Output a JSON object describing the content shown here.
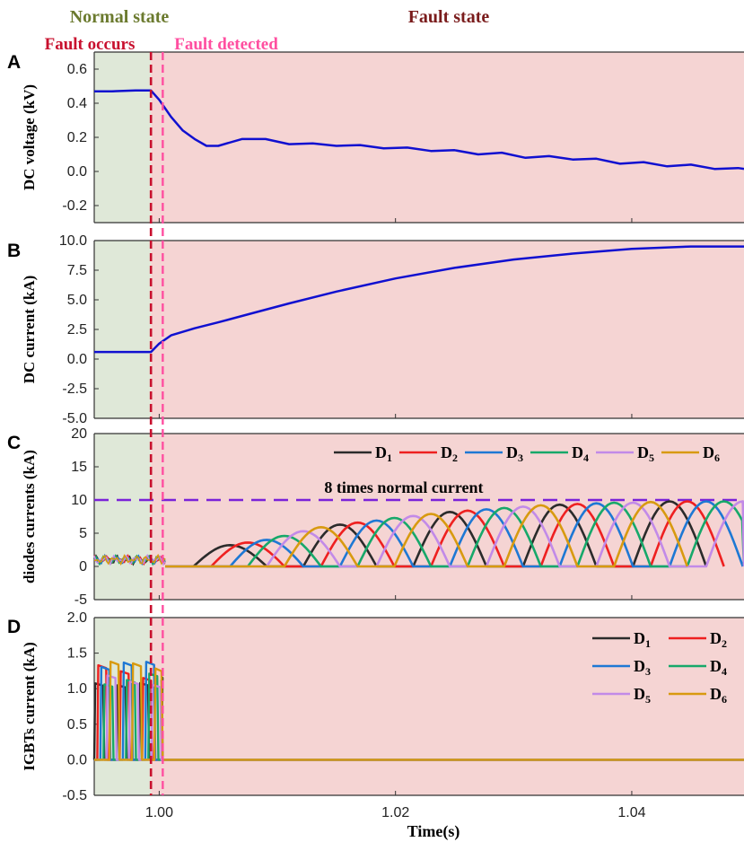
{
  "figure": {
    "normal_state_label": "Normal state",
    "fault_state_label": "Fault state",
    "fault_occurs_label": "Fault occurs",
    "fault_detected_label": "Fault detected",
    "colors": {
      "normal_bg": "#dfe8d8",
      "fault_bg": "#f5d4d3",
      "normal_label": "#6b7a2e",
      "fault_label": "#7a1c1c",
      "fault_occurs": "#c8102e",
      "fault_detected": "#ff4fa0",
      "trace": "#1010d0"
    },
    "xlabel": "Time(s)",
    "x_range": [
      0.9945,
      1.0495
    ],
    "fault_occurs_time": 0.9993,
    "fault_detected_time": 1.0003,
    "x_ticks": [
      1.0,
      1.02,
      1.04
    ],
    "x_tick_labels": [
      "1.00",
      "1.02",
      "1.04"
    ]
  },
  "chart_data": [
    {
      "panel": "A",
      "type": "line",
      "ylabel": "DC voltage (kV)",
      "ylim": [
        -0.3,
        0.7
      ],
      "yticks": [
        -0.2,
        0.0,
        0.2,
        0.4,
        0.6
      ],
      "ytick_labels": [
        "-0.2",
        "0.0",
        "0.2",
        "0.4",
        "0.6"
      ],
      "series": [
        {
          "color": "#1010d0",
          "x": [
            0.9945,
            0.996,
            0.998,
            0.9993,
            1.0,
            1.001,
            1.002,
            1.003,
            1.004,
            1.005,
            1.007,
            1.009,
            1.011,
            1.013,
            1.015,
            1.017,
            1.019,
            1.021,
            1.023,
            1.025,
            1.027,
            1.029,
            1.031,
            1.033,
            1.035,
            1.037,
            1.039,
            1.041,
            1.043,
            1.045,
            1.047,
            1.049,
            1.0495
          ],
          "y": [
            0.47,
            0.47,
            0.475,
            0.475,
            0.42,
            0.32,
            0.24,
            0.19,
            0.15,
            0.15,
            0.19,
            0.19,
            0.16,
            0.165,
            0.15,
            0.155,
            0.135,
            0.14,
            0.12,
            0.125,
            0.1,
            0.11,
            0.08,
            0.09,
            0.07,
            0.075,
            0.045,
            0.055,
            0.03,
            0.04,
            0.015,
            0.02,
            0.015
          ]
        }
      ]
    },
    {
      "panel": "B",
      "type": "line",
      "ylabel": "DC current (kA)",
      "ylim": [
        -5.0,
        10.0
      ],
      "yticks": [
        -5.0,
        -2.5,
        0.0,
        2.5,
        5.0,
        7.5,
        10.0
      ],
      "ytick_labels": [
        "-5.0",
        "-2.5",
        "0.0",
        "2.5",
        "5.0",
        "7.5",
        "10.0"
      ],
      "series": [
        {
          "color": "#1010d0",
          "x": [
            0.9945,
            0.996,
            0.998,
            0.9993,
            1.0,
            1.001,
            1.003,
            1.005,
            1.008,
            1.011,
            1.015,
            1.02,
            1.025,
            1.03,
            1.035,
            1.04,
            1.045,
            1.0495
          ],
          "y": [
            0.6,
            0.6,
            0.6,
            0.6,
            1.3,
            2.0,
            2.6,
            3.1,
            3.9,
            4.7,
            5.7,
            6.8,
            7.7,
            8.4,
            8.9,
            9.3,
            9.5,
            9.5
          ]
        }
      ]
    },
    {
      "panel": "C",
      "type": "line",
      "ylabel": "diodes currents (kA)",
      "ylim": [
        -5,
        20
      ],
      "yticks": [
        -5,
        0,
        5,
        10,
        15,
        20
      ],
      "ytick_labels": [
        "-5",
        "0",
        "5",
        "10",
        "15",
        "20"
      ],
      "reference_line": {
        "y": 10,
        "label": "8 times normal current",
        "color": "#7a22d8"
      },
      "series": [
        {
          "name": "D1",
          "color": "#2b2b2b",
          "peaks": [
            [
              1.006,
              3.2
            ],
            [
              1.0153,
              6.3
            ],
            [
              1.0246,
              8.2
            ],
            [
              1.0339,
              9.3
            ],
            [
              1.0432,
              9.8
            ]
          ]
        },
        {
          "name": "D2",
          "color": "#ee2020",
          "peaks": [
            [
              1.0075,
              3.6
            ],
            [
              1.0168,
              6.6
            ],
            [
              1.0261,
              8.4
            ],
            [
              1.0354,
              9.4
            ],
            [
              1.0447,
              9.8
            ]
          ]
        },
        {
          "name": "D3",
          "color": "#1e78d4",
          "peaks": [
            [
              1.0091,
              4.0
            ],
            [
              1.0184,
              6.9
            ],
            [
              1.0277,
              8.6
            ],
            [
              1.037,
              9.5
            ],
            [
              1.0463,
              9.8
            ]
          ]
        },
        {
          "name": "D4",
          "color": "#17a86a",
          "peaks": [
            [
              1.0106,
              4.6
            ],
            [
              1.0199,
              7.3
            ],
            [
              1.0292,
              8.8
            ],
            [
              1.0385,
              9.6
            ],
            [
              1.0478,
              9.8
            ]
          ]
        },
        {
          "name": "D5",
          "color": "#c28ae8",
          "peaks": [
            [
              1.0122,
              5.3
            ],
            [
              1.0215,
              7.6
            ],
            [
              1.0308,
              9.0
            ],
            [
              1.0401,
              9.6
            ],
            [
              1.0494,
              9.8
            ]
          ]
        },
        {
          "name": "D6",
          "color": "#d89a10",
          "peaks": [
            [
              1.0137,
              5.9
            ],
            [
              1.023,
              7.9
            ],
            [
              1.0323,
              9.2
            ],
            [
              1.0416,
              9.7
            ]
          ]
        }
      ],
      "legend_labels": [
        {
          "base": "D",
          "sub": "1"
        },
        {
          "base": "D",
          "sub": "2"
        },
        {
          "base": "D",
          "sub": "3"
        },
        {
          "base": "D",
          "sub": "4"
        },
        {
          "base": "D",
          "sub": "5"
        },
        {
          "base": "D",
          "sub": "6"
        }
      ]
    },
    {
      "panel": "D",
      "type": "line",
      "ylabel": "IGBTs current (kA)",
      "ylim": [
        -0.5,
        2.0
      ],
      "yticks": [
        -0.5,
        0.0,
        0.5,
        1.0,
        1.5,
        2.0
      ],
      "ytick_labels": [
        "-0.5",
        "0.0",
        "0.5",
        "1.0",
        "1.5",
        "2.0"
      ],
      "series": [
        {
          "name": "D1",
          "color": "#2b2b2b"
        },
        {
          "name": "D2",
          "color": "#ee2020"
        },
        {
          "name": "D3",
          "color": "#1e78d4"
        },
        {
          "name": "D4",
          "color": "#17a86a"
        },
        {
          "name": "D5",
          "color": "#c28ae8"
        },
        {
          "name": "D6",
          "color": "#d89a10"
        }
      ],
      "normal_peak": 1.38,
      "after_fault_value": 0.0,
      "legend_labels": [
        {
          "base": "D",
          "sub": "1"
        },
        {
          "base": "D",
          "sub": "2"
        },
        {
          "base": "D",
          "sub": "3"
        },
        {
          "base": "D",
          "sub": "4"
        },
        {
          "base": "D",
          "sub": "5"
        },
        {
          "base": "D",
          "sub": "6"
        }
      ]
    }
  ]
}
